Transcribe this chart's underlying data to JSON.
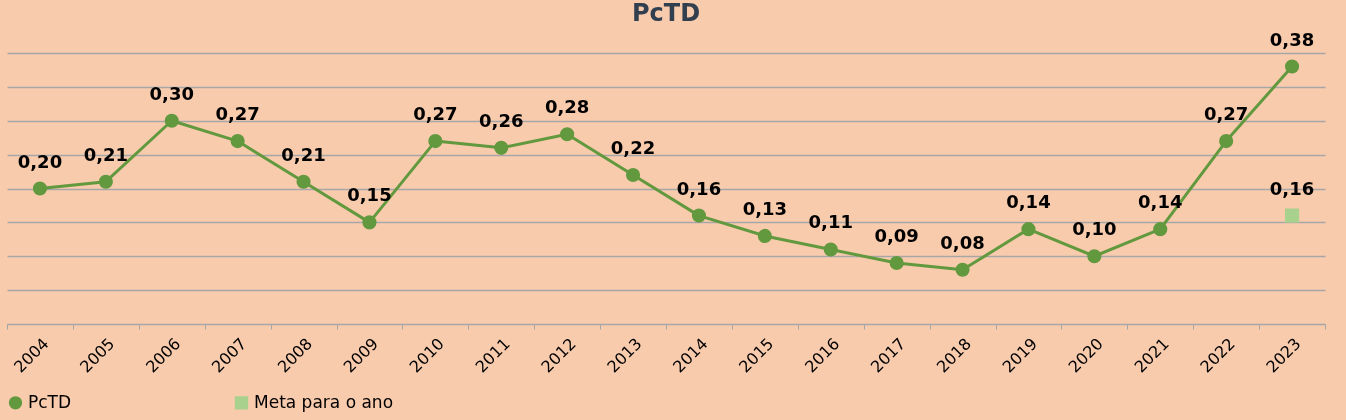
{
  "chart_data": {
    "type": "line",
    "title": "PcTD",
    "categories": [
      "2004",
      "2005",
      "2006",
      "2007",
      "2008",
      "2009",
      "2010",
      "2011",
      "2012",
      "2013",
      "2014",
      "2015",
      "2016",
      "2017",
      "2018",
      "2019",
      "2020",
      "2021",
      "2022",
      "2023"
    ],
    "series": [
      {
        "name": "PcTD",
        "color": "#62993e",
        "marker": "circle",
        "values": [
          0.2,
          0.21,
          0.3,
          0.27,
          0.21,
          0.15,
          0.27,
          0.26,
          0.28,
          0.22,
          0.16,
          0.13,
          0.11,
          0.09,
          0.08,
          0.14,
          0.1,
          0.14,
          0.27,
          0.38
        ],
        "value_labels": [
          "0,20",
          "0,21",
          "0,30",
          "0,27",
          "0,21",
          "0,15",
          "0,27",
          "0,26",
          "0,28",
          "0,22",
          "0,16",
          "0,13",
          "0,11",
          "0,09",
          "0,08",
          "0,14",
          "0,10",
          "0,14",
          "0,27",
          "0,38"
        ]
      },
      {
        "name": "Meta para o ano",
        "color": "#a9d18e",
        "marker": "square",
        "values": [
          null,
          null,
          null,
          null,
          null,
          null,
          null,
          null,
          null,
          null,
          null,
          null,
          null,
          null,
          null,
          null,
          null,
          null,
          null,
          0.16
        ],
        "value_labels": [
          null,
          null,
          null,
          null,
          null,
          null,
          null,
          null,
          null,
          null,
          null,
          null,
          null,
          null,
          null,
          null,
          null,
          null,
          null,
          "0,16"
        ]
      }
    ],
    "tick_labels": "x",
    "grid": "y",
    "legend": "bottom",
    "line_style": "solid"
  }
}
